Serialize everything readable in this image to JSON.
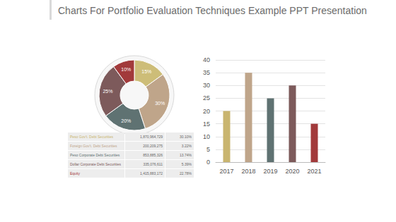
{
  "title": "Charts For Portfolio Evaluation Techniques Example PPT Presentation",
  "table": {
    "rows": [
      [
        "Peso Gov't. Debt Securities",
        "1,870,964,729",
        "30.10%"
      ],
      [
        "Foreign Gov't. Debt Securities",
        "200,209,275",
        "3.22%"
      ],
      [
        "Peso Corporate Debt Securities",
        "853,885,326",
        "13.74%"
      ],
      [
        "Dollar Corporate Debt Securities",
        "335,076,611",
        "5.39%"
      ],
      [
        "Equity",
        "1,415,883,172",
        "22.78%"
      ]
    ]
  },
  "chart_data": [
    {
      "type": "pie",
      "values": [
        15,
        30,
        20,
        25,
        10
      ],
      "value_labels": [
        "15%",
        "30%",
        "20%",
        "25%",
        "10%"
      ],
      "colors": [
        "#cdbd78",
        "#bfa58a",
        "#5f7272",
        "#7d5a5b",
        "#a23a3b"
      ],
      "data_labels": true
    },
    {
      "type": "bar",
      "categories": [
        "2017",
        "2018",
        "2019",
        "2020",
        "2021"
      ],
      "values": [
        20,
        35,
        25,
        30,
        15
      ],
      "colors": [
        "#c9b56f",
        "#bfa58a",
        "#5f7272",
        "#7d5a5b",
        "#a23a3b"
      ],
      "ylim": [
        0,
        40
      ],
      "yticks": [
        0,
        5,
        10,
        15,
        20,
        25,
        30,
        35,
        40
      ],
      "grid": true
    }
  ]
}
